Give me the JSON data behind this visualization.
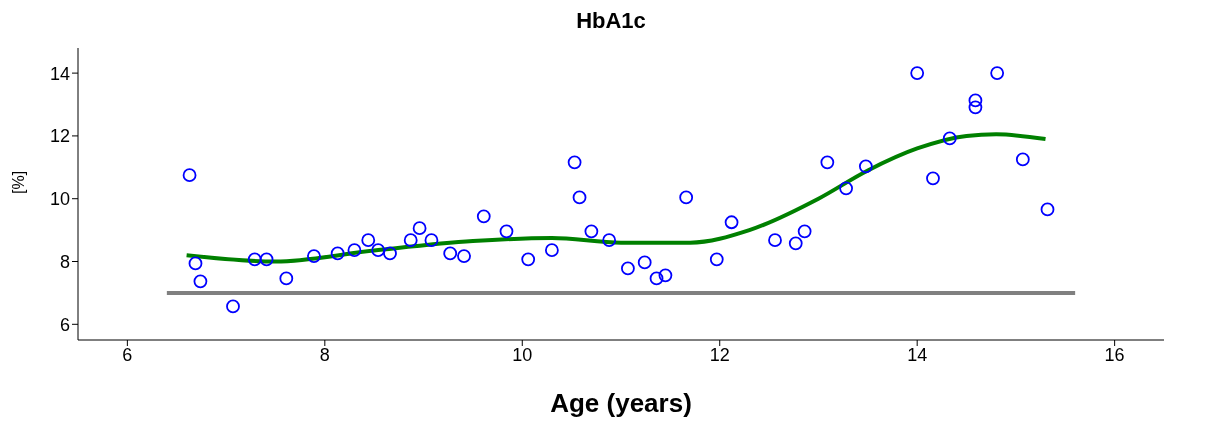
{
  "chart_data": {
    "type": "scatter",
    "title": "HbA1c",
    "xlabel": "Age (years)",
    "ylabel": "[%]",
    "xlim": [
      5.5,
      16.5
    ],
    "xticks": [
      6,
      8,
      10,
      12,
      14,
      16
    ],
    "ylim": [
      5.5,
      14.8
    ],
    "yticks": [
      6,
      8,
      10,
      12,
      14
    ],
    "grid": false,
    "legend": false,
    "series": [
      {
        "color": "#0000ff",
        "marker": "circle",
        "x": [
          6.63,
          6.69,
          6.74,
          7.07,
          7.29,
          7.41,
          7.61,
          7.89,
          8.13,
          8.3,
          8.44,
          8.54,
          8.66,
          8.87,
          8.96,
          9.08,
          9.27,
          9.41,
          9.61,
          9.84,
          10.06,
          10.3,
          10.53,
          10.58,
          10.7,
          10.88,
          11.07,
          11.24,
          11.36,
          11.45,
          11.66,
          11.97,
          12.12,
          12.56,
          12.77,
          12.86,
          13.09,
          13.28,
          13.48,
          14.0,
          14.16,
          14.33,
          14.59,
          14.59,
          14.81,
          15.07,
          15.32
        ],
        "values": [
          10.75,
          7.94,
          7.37,
          6.57,
          8.07,
          8.07,
          7.46,
          8.17,
          8.26,
          8.36,
          8.68,
          8.36,
          8.26,
          8.68,
          9.06,
          8.68,
          8.26,
          8.17,
          9.44,
          8.96,
          8.07,
          8.36,
          11.16,
          10.04,
          8.96,
          8.68,
          7.78,
          7.97,
          7.46,
          7.56,
          10.04,
          8.07,
          9.25,
          8.68,
          8.58,
          8.96,
          11.16,
          10.33,
          11.03,
          14.0,
          10.65,
          11.92,
          13.13,
          12.91,
          14.0,
          11.25,
          9.66
        ]
      },
      {
        "type": "line",
        "color": "#808080",
        "line_style": "solid",
        "marker": "none",
        "x": [
          6.4,
          15.6
        ],
        "values": [
          7,
          7
        ]
      },
      {
        "type": "line",
        "color": "#008000",
        "line_style": "solid",
        "marker": "none",
        "x": [
          6.6,
          7.5,
          8.5,
          9.5,
          10.3,
          11,
          11.7,
          12.3,
          13,
          13.5,
          14,
          14.5,
          14.8,
          15.3
        ],
        "values": [
          8.2,
          8.0,
          8.35,
          8.65,
          8.75,
          8.6,
          8.6,
          9.0,
          10.0,
          10.9,
          11.6,
          12.0,
          12.05,
          11.9
        ]
      }
    ]
  }
}
